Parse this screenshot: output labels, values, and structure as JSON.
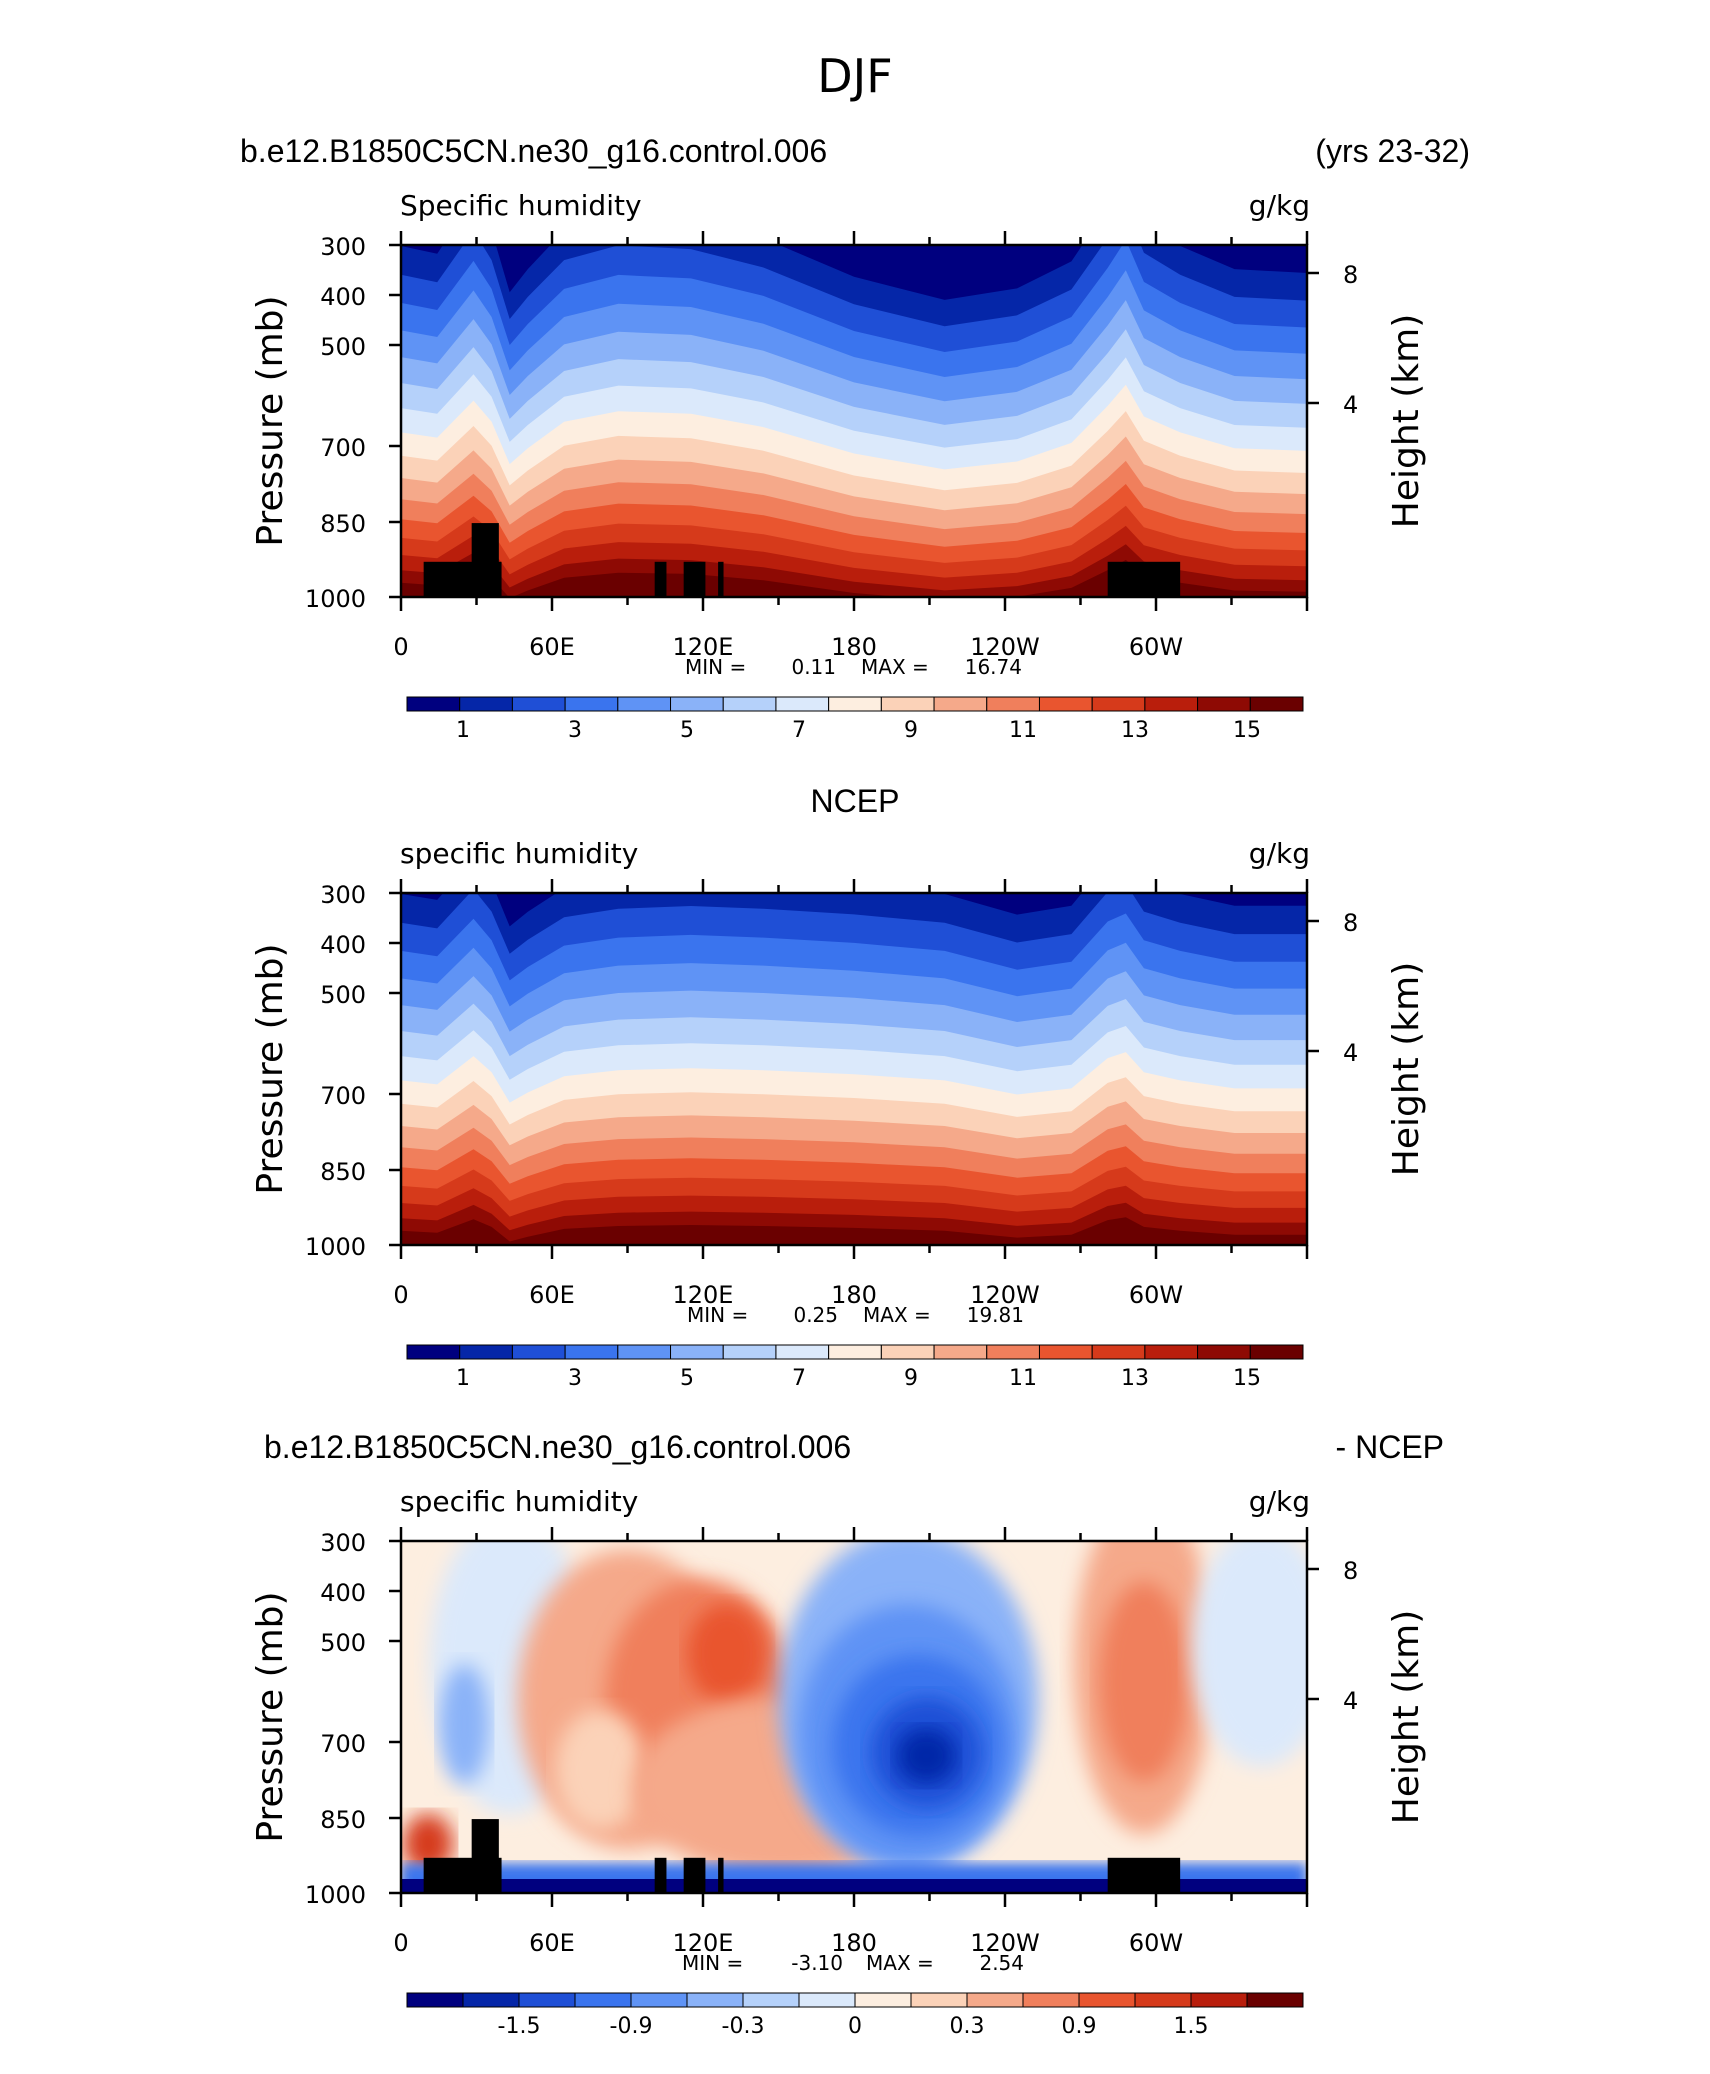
{
  "page": {
    "title": "DJF"
  },
  "colormaps": {
    "abs": [
      "#00007f",
      "#0526a8",
      "#1f4fd6",
      "#3a74ee",
      "#5f93f5",
      "#8ab2f8",
      "#b5d1fa",
      "#dbe9fb",
      "#fdeee0",
      "#fbd2b8",
      "#f5a98a",
      "#f07f5c",
      "#e9552f",
      "#d63a1b",
      "#b91e0c",
      "#8e0a04",
      "#6a0000"
    ],
    "diff": [
      "#00007f",
      "#0526a8",
      "#1f4fd6",
      "#3a74ee",
      "#5f93f5",
      "#8ab2f8",
      "#b5d1fa",
      "#dbe9fb",
      "#fdeee0",
      "#fbd2b8",
      "#f5a98a",
      "#f07f5c",
      "#e9552f",
      "#d63a1b",
      "#b91e0c",
      "#6a0000"
    ]
  },
  "panels": [
    {
      "title_left": "b.e12.B1850C5CN.ne30_g16.control.006",
      "title_right": "(yrs 23-32)",
      "var_label": "Specific humidity",
      "units": "g/kg",
      "ylabel": "Pressure (mb)",
      "ylabel_right": "Height (km)",
      "yticks": [
        "300",
        "400",
        "500",
        "700",
        "850",
        "1000"
      ],
      "yticks_right": [
        "8",
        "4"
      ],
      "xticks": [
        "0",
        "60E",
        "120E",
        "180",
        "120W",
        "60W"
      ],
      "min_label": "MIN =",
      "min_value": "0.11",
      "max_label": "MAX =",
      "max_value": "16.74",
      "colorbar_labels": [
        "1",
        "3",
        "5",
        "7",
        "9",
        "11",
        "13",
        "15"
      ]
    },
    {
      "title_center": "NCEP",
      "var_label": "specific humidity",
      "units": "g/kg",
      "ylabel": "Pressure (mb)",
      "ylabel_right": "Height (km)",
      "yticks": [
        "300",
        "400",
        "500",
        "700",
        "850",
        "1000"
      ],
      "yticks_right": [
        "8",
        "4"
      ],
      "xticks": [
        "0",
        "60E",
        "120E",
        "180",
        "120W",
        "60W"
      ],
      "min_label": "MIN =",
      "min_value": "0.25",
      "max_label": "MAX =",
      "max_value": "19.81",
      "colorbar_labels": [
        "1",
        "3",
        "5",
        "7",
        "9",
        "11",
        "13",
        "15"
      ]
    },
    {
      "title_left": "b.e12.B1850C5CN.ne30_g16.control.006",
      "title_right": "- NCEP",
      "var_label": "specific humidity",
      "units": "g/kg",
      "ylabel": "Pressure (mb)",
      "ylabel_right": "Height (km)",
      "yticks": [
        "300",
        "400",
        "500",
        "700",
        "850",
        "1000"
      ],
      "yticks_right": [
        "8",
        "4"
      ],
      "xticks": [
        "0",
        "60E",
        "120E",
        "180",
        "120W",
        "60W"
      ],
      "min_label": "MIN =",
      "min_value": "-3.10",
      "max_label": "MAX =",
      "max_value": "2.54",
      "colorbar_labels": [
        "-1.5",
        "-0.9",
        "-0.3",
        "0",
        "0.3",
        "0.9",
        "1.5"
      ]
    }
  ],
  "chart_data": [
    {
      "type": "heatmap",
      "title": "b.e12.B1850C5CN.ne30_g16.control.006 (yrs 23-32)",
      "subtitle": "Specific humidity",
      "units": "g/kg",
      "x_range": [
        0,
        360
      ],
      "x_ticks": [
        "0",
        "60E",
        "120E",
        "180",
        "120W",
        "60W"
      ],
      "y_range_mb": [
        1000,
        300
      ],
      "y_scale": "log",
      "y_ticks_mb": [
        300,
        400,
        500,
        700,
        850,
        1000
      ],
      "contour_levels": [
        0,
        1,
        2,
        3,
        4,
        5,
        6,
        7,
        8,
        9,
        10,
        11,
        12,
        13,
        14,
        15,
        16
      ],
      "min": 0.11,
      "max": 16.74,
      "surface_level_mb": [
        1000,
        850,
        700,
        500,
        400,
        300
      ],
      "lon_profile_deg": [
        0,
        30,
        60,
        90,
        120,
        150,
        180,
        210,
        240,
        270,
        300,
        330,
        360
      ],
      "approx_q_at_levels": {
        "1000": [
          15,
          13,
          15,
          16,
          16,
          16,
          15,
          14,
          14,
          14,
          15,
          15,
          15
        ],
        "850": [
          10,
          10,
          10,
          11,
          12,
          11,
          10,
          10,
          10,
          11,
          11,
          10,
          10
        ],
        "700": [
          6,
          7,
          6,
          7,
          8,
          7,
          6,
          5,
          5,
          7,
          7,
          6,
          6
        ],
        "500": [
          3,
          3,
          3,
          3,
          4,
          3,
          2,
          2,
          2,
          3,
          3,
          2,
          3
        ]
      }
    },
    {
      "type": "heatmap",
      "title": "NCEP",
      "subtitle": "specific humidity",
      "units": "g/kg",
      "x_range": [
        0,
        360
      ],
      "x_ticks": [
        "0",
        "60E",
        "120E",
        "180",
        "120W",
        "60W"
      ],
      "y_range_mb": [
        1000,
        300
      ],
      "y_scale": "log",
      "y_ticks_mb": [
        300,
        400,
        500,
        700,
        850,
        1000
      ],
      "contour_levels": [
        0,
        1,
        2,
        3,
        4,
        5,
        6,
        7,
        8,
        9,
        10,
        11,
        12,
        13,
        14,
        15,
        16
      ],
      "min": 0.25,
      "max": 19.81,
      "lon_profile_deg": [
        0,
        30,
        60,
        90,
        120,
        150,
        180,
        210,
        240,
        270,
        300,
        330,
        360
      ],
      "approx_q_at_levels": {
        "1000": [
          16,
          15,
          16,
          16,
          16,
          16,
          16,
          16,
          16,
          16,
          16,
          16,
          16
        ],
        "850": [
          10,
          10,
          10,
          11,
          11,
          11,
          11,
          11,
          10,
          11,
          11,
          10,
          10
        ],
        "700": [
          6,
          7,
          6,
          7,
          7,
          7,
          7,
          7,
          6,
          7,
          7,
          6,
          6
        ],
        "500": [
          3,
          3,
          3,
          3,
          3,
          3,
          3,
          3,
          2,
          3,
          3,
          3,
          3
        ]
      }
    },
    {
      "type": "heatmap",
      "title": "b.e12.B1850C5CN.ne30_g16.control.006 - NCEP",
      "subtitle": "specific humidity",
      "units": "g/kg",
      "x_range": [
        0,
        360
      ],
      "x_ticks": [
        "0",
        "60E",
        "120E",
        "180",
        "120W",
        "60W"
      ],
      "y_range_mb": [
        1000,
        300
      ],
      "y_scale": "log",
      "y_ticks_mb": [
        300,
        400,
        500,
        700,
        850,
        1000
      ],
      "contour_levels": [
        -1.8,
        -1.5,
        -1.2,
        -0.9,
        -0.6,
        -0.3,
        -0.1,
        0,
        0.1,
        0.3,
        0.6,
        0.9,
        1.2,
        1.5,
        1.8
      ],
      "min": -3.1,
      "max": 2.54,
      "features": [
        {
          "lon": 195,
          "p_mb": 700,
          "value": -2.0
        },
        {
          "lon": 120,
          "p_mb": 550,
          "value": 1.0
        },
        {
          "lon": 285,
          "p_mb": 550,
          "value": 0.8
        },
        {
          "lon": 180,
          "p_mb": 1000,
          "value": -2.0
        }
      ]
    }
  ]
}
